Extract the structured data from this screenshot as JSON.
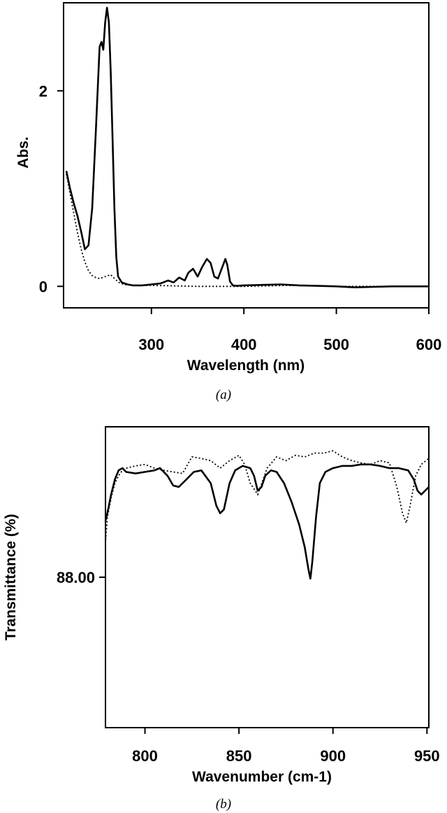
{
  "chart_data": [
    {
      "type": "line",
      "panel_label": "(a)",
      "xlabel": "Wavelength (nm)",
      "ylabel": "Abs.",
      "xlim": [
        205,
        600
      ],
      "ylim": [
        -0.22,
        2.9
      ],
      "xticks": [
        300,
        400,
        500,
        600
      ],
      "yticks": [
        0,
        2
      ],
      "grid": false,
      "series": [
        {
          "style": "solid",
          "x": [
            208,
            212,
            216,
            220,
            224,
            228,
            232,
            236,
            240,
            244,
            246,
            248,
            250,
            252,
            254,
            256,
            258,
            260,
            262,
            264,
            268,
            274,
            280,
            290,
            300,
            310,
            318,
            324,
            330,
            336,
            340,
            345,
            350,
            355,
            360,
            364,
            368,
            372,
            376,
            380,
            382,
            385,
            388,
            392,
            400,
            420,
            440,
            460,
            480,
            500,
            520,
            540,
            560,
            580,
            600
          ],
          "y": [
            1.18,
            1.0,
            0.85,
            0.72,
            0.56,
            0.38,
            0.42,
            0.8,
            1.6,
            2.45,
            2.5,
            2.42,
            2.7,
            2.85,
            2.7,
            2.2,
            1.5,
            0.8,
            0.3,
            0.1,
            0.04,
            0.02,
            0.01,
            0.01,
            0.02,
            0.03,
            0.06,
            0.04,
            0.09,
            0.06,
            0.14,
            0.18,
            0.1,
            0.2,
            0.28,
            0.24,
            0.1,
            0.08,
            0.18,
            0.28,
            0.22,
            0.05,
            0.01,
            0.005,
            0.01,
            0.015,
            0.02,
            0.01,
            0.005,
            0.0,
            -0.01,
            -0.005,
            0.0,
            0.0,
            0.0
          ]
        },
        {
          "style": "dotted",
          "x": [
            208,
            212,
            216,
            220,
            224,
            228,
            232,
            236,
            240,
            244,
            250,
            256,
            260,
            265,
            270,
            280,
            300,
            350,
            400,
            450,
            500,
            550,
            600
          ],
          "y": [
            1.15,
            0.95,
            0.75,
            0.55,
            0.38,
            0.25,
            0.16,
            0.11,
            0.09,
            0.08,
            0.1,
            0.12,
            0.08,
            0.04,
            0.02,
            0.01,
            0.01,
            0.0,
            0.0,
            0.01,
            0.0,
            0.0,
            0.0
          ]
        }
      ]
    },
    {
      "type": "line",
      "panel_label": "(b)",
      "xlabel": "Wavenumber (cm-1)",
      "ylabel": "Transmittance (%)",
      "xlim": [
        779,
        951
      ],
      "ylim": [
        86.0,
        90.0
      ],
      "xticks": [
        800,
        850,
        900,
        950
      ],
      "yticks": [
        88.0
      ],
      "ytick_labels": [
        "88.00"
      ],
      "grid": false,
      "series": [
        {
          "style": "solid",
          "x": [
            779,
            780,
            782,
            784,
            786,
            788,
            790,
            795,
            800,
            805,
            808,
            812,
            815,
            818,
            822,
            826,
            830,
            835,
            838,
            840,
            842,
            845,
            848,
            852,
            856,
            858,
            860,
            862,
            864,
            867,
            870,
            874,
            878,
            882,
            885,
            887,
            888,
            889,
            891,
            893,
            896,
            900,
            905,
            910,
            915,
            920,
            925,
            930,
            935,
            940,
            943,
            945,
            947,
            951
          ],
          "y": [
            88.75,
            88.85,
            89.1,
            89.3,
            89.42,
            89.45,
            89.4,
            89.38,
            89.4,
            89.42,
            89.45,
            89.35,
            89.22,
            89.2,
            89.3,
            89.4,
            89.42,
            89.25,
            88.95,
            88.85,
            88.9,
            89.25,
            89.42,
            89.48,
            89.45,
            89.35,
            89.15,
            89.2,
            89.35,
            89.42,
            89.4,
            89.25,
            89.0,
            88.7,
            88.4,
            88.1,
            87.98,
            88.2,
            88.8,
            89.25,
            89.4,
            89.45,
            89.48,
            89.48,
            89.5,
            89.5,
            89.48,
            89.45,
            89.45,
            89.42,
            89.3,
            89.15,
            89.1,
            89.2
          ]
        },
        {
          "style": "dotted",
          "x": [
            779,
            780,
            782,
            784,
            786,
            788,
            790,
            795,
            800,
            805,
            810,
            815,
            820,
            825,
            830,
            835,
            840,
            845,
            850,
            853,
            856,
            860,
            865,
            870,
            875,
            880,
            885,
            890,
            895,
            900,
            905,
            910,
            915,
            920,
            925,
            930,
            934,
            937,
            939,
            941,
            944,
            947,
            951
          ],
          "y": [
            88.45,
            88.8,
            89.05,
            89.25,
            89.35,
            89.42,
            89.45,
            89.48,
            89.5,
            89.45,
            89.42,
            89.4,
            89.38,
            89.6,
            89.58,
            89.55,
            89.45,
            89.55,
            89.62,
            89.5,
            89.25,
            89.1,
            89.45,
            89.6,
            89.55,
            89.62,
            89.6,
            89.65,
            89.65,
            89.68,
            89.6,
            89.55,
            89.52,
            89.5,
            89.55,
            89.52,
            89.2,
            88.85,
            88.72,
            88.95,
            89.35,
            89.5,
            89.58
          ]
        }
      ]
    }
  ]
}
